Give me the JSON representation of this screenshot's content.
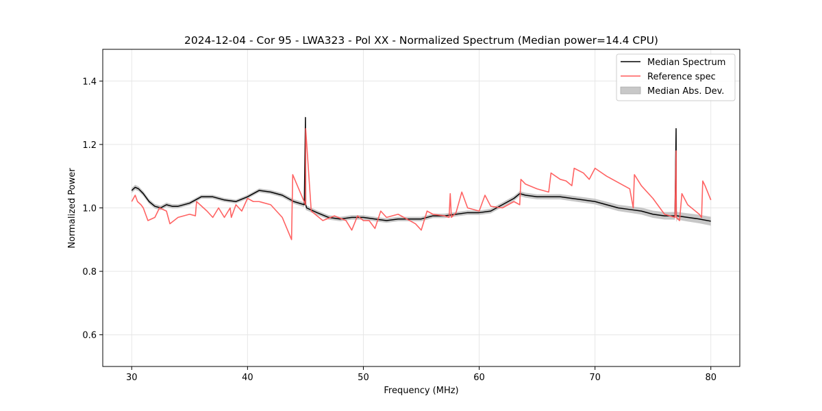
{
  "chart_data": {
    "type": "line",
    "title": "2024-12-04 - Cor 95 - LWA323 - Pol XX - Normalized Spectrum (Median power=14.4 CPU)",
    "xlabel": "Frequency (MHz)",
    "ylabel": "Normalized Power",
    "xlim": [
      27.5,
      82.5
    ],
    "ylim": [
      0.5,
      1.5
    ],
    "xticks": [
      30,
      40,
      50,
      60,
      70,
      80
    ],
    "xtick_labels": [
      "30",
      "40",
      "50",
      "60",
      "70",
      "80"
    ],
    "yticks": [
      0.6,
      0.8,
      1.0,
      1.2,
      1.4
    ],
    "ytick_labels": [
      "0.6",
      "0.8",
      "1.0",
      "1.2",
      "1.4"
    ],
    "grid": true,
    "legend_position": "top-right",
    "legend": [
      "Median Spectrum",
      "Reference spec",
      "Median Abs. Dev."
    ],
    "colors": {
      "median": "#000000",
      "reference": "#ff5a5a",
      "mad": "#bdbdbd"
    },
    "series": [
      {
        "name": "Median Spectrum",
        "x": [
          30,
          30.3,
          30.6,
          31,
          31.5,
          32,
          32.5,
          33,
          33.5,
          34,
          35,
          36,
          37,
          38,
          39,
          40,
          41,
          42,
          43,
          44,
          44.9,
          45.0,
          45.02,
          45.1,
          46,
          47,
          48,
          49,
          50,
          51,
          52,
          53,
          54,
          55,
          56,
          57,
          58,
          59,
          60,
          61,
          62,
          63,
          63.5,
          64,
          65,
          66,
          67,
          68,
          69,
          70,
          71,
          72,
          73,
          74,
          75,
          76,
          76.9,
          77.0,
          77.02,
          77.1,
          78,
          79,
          80
        ],
        "y": [
          1.055,
          1.065,
          1.06,
          1.045,
          1.02,
          1.005,
          1.0,
          1.01,
          1.005,
          1.005,
          1.015,
          1.035,
          1.035,
          1.025,
          1.02,
          1.035,
          1.055,
          1.05,
          1.04,
          1.02,
          1.01,
          1.285,
          1.01,
          1.0,
          0.985,
          0.97,
          0.965,
          0.97,
          0.97,
          0.965,
          0.96,
          0.965,
          0.965,
          0.965,
          0.975,
          0.975,
          0.98,
          0.985,
          0.985,
          0.99,
          1.01,
          1.03,
          1.045,
          1.04,
          1.035,
          1.035,
          1.035,
          1.03,
          1.025,
          1.02,
          1.01,
          1.0,
          0.995,
          0.99,
          0.98,
          0.975,
          0.975,
          1.25,
          0.975,
          0.975,
          0.97,
          0.965,
          0.958
        ]
      },
      {
        "name": "Reference spec",
        "x": [
          30,
          30.3,
          30.5,
          30.8,
          31,
          31.2,
          31.4,
          32,
          32.4,
          33,
          33.3,
          34,
          35,
          35.5,
          35.6,
          36.5,
          37,
          37.5,
          38,
          38.5,
          38.6,
          39,
          39.5,
          40,
          40.5,
          41,
          42,
          43,
          43.8,
          43.9,
          45.0,
          45.02,
          45.5,
          46.5,
          47.5,
          48.5,
          49,
          49.5,
          50,
          50.5,
          51,
          51.5,
          52,
          53,
          54,
          54.5,
          55,
          55.5,
          56,
          57,
          57.4,
          57.5,
          57.6,
          58,
          58.5,
          59,
          60,
          60.5,
          61,
          62,
          63,
          63.5,
          63.6,
          64,
          65,
          66,
          66.2,
          67,
          67.5,
          68,
          68.2,
          69,
          69.5,
          70,
          71,
          72,
          73,
          73.3,
          73.4,
          74,
          75,
          76,
          76.9,
          77.0,
          77.02,
          77.3,
          77.5,
          78,
          79,
          79.2,
          79.3,
          79.5,
          80
        ],
        "y": [
          1.02,
          1.04,
          1.02,
          1.01,
          1.0,
          0.98,
          0.96,
          0.97,
          1.0,
          0.99,
          0.95,
          0.97,
          0.98,
          0.975,
          1.02,
          0.99,
          0.97,
          1.0,
          0.97,
          1.0,
          0.97,
          1.01,
          0.99,
          1.03,
          1.02,
          1.02,
          1.01,
          0.97,
          0.9,
          1.105,
          1.01,
          1.25,
          0.99,
          0.96,
          0.975,
          0.96,
          0.93,
          0.975,
          0.96,
          0.96,
          0.935,
          0.99,
          0.97,
          0.98,
          0.96,
          0.95,
          0.93,
          0.99,
          0.98,
          0.975,
          0.97,
          1.045,
          0.97,
          0.985,
          1.05,
          1.0,
          0.99,
          1.04,
          1.005,
          1.0,
          1.02,
          1.01,
          1.09,
          1.075,
          1.06,
          1.05,
          1.11,
          1.09,
          1.085,
          1.07,
          1.125,
          1.11,
          1.09,
          1.125,
          1.1,
          1.08,
          1.06,
          1.0,
          1.105,
          1.07,
          1.03,
          0.98,
          0.97,
          1.18,
          0.97,
          0.96,
          1.045,
          1.01,
          0.98,
          0.97,
          1.085,
          1.07,
          1.025
        ]
      },
      {
        "name": "Median Abs. Dev.",
        "x": [
          30,
          35,
          40,
          44,
          44.95,
          45.0,
          45.05,
          46,
          50,
          55,
          60,
          65,
          70,
          74,
          76.95,
          77.0,
          77.05,
          78,
          80
        ],
        "y": [
          0.008,
          0.006,
          0.006,
          0.007,
          0.008,
          0.022,
          0.008,
          0.007,
          0.007,
          0.007,
          0.007,
          0.008,
          0.009,
          0.011,
          0.012,
          0.025,
          0.012,
          0.013,
          0.014
        ]
      }
    ]
  }
}
